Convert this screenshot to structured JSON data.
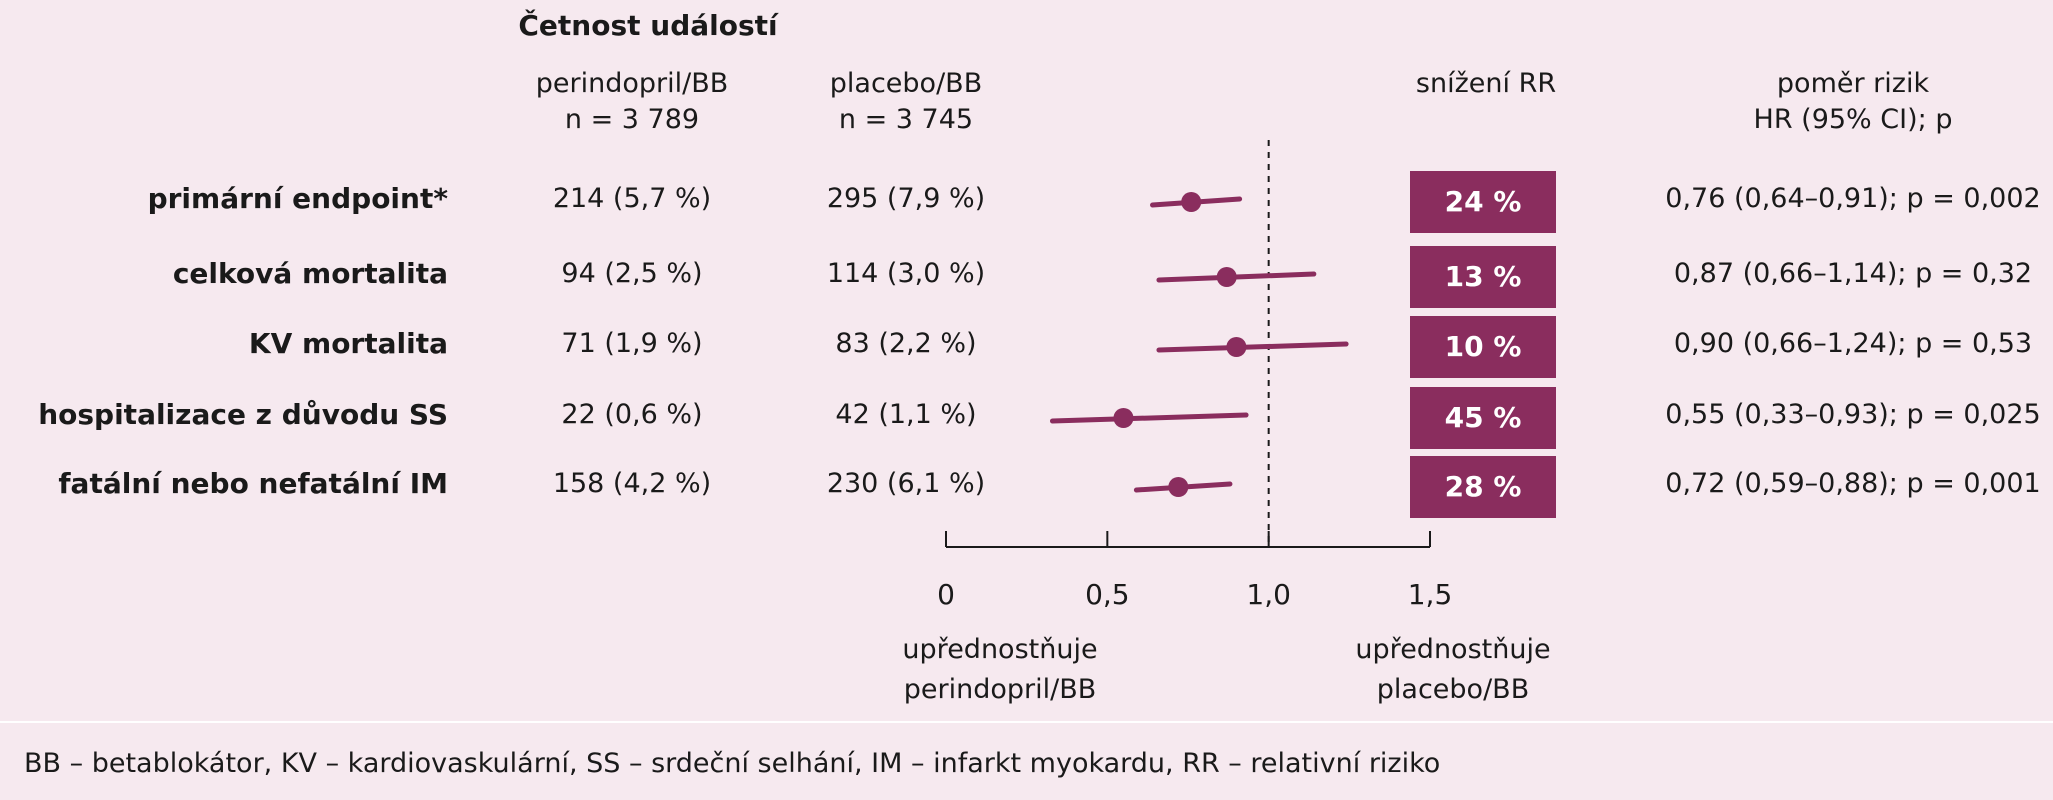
{
  "header": {
    "title": "Četnost událostí",
    "col_perindopril": "perindopril/BB",
    "col_perindopril_n": "n = 3 789",
    "col_placebo": "placebo/BB",
    "col_placebo_n": "n = 3 745",
    "col_rr": "snížení RR",
    "col_hr_line1": "poměr rizik",
    "col_hr_line2": "HR (95% CI); p"
  },
  "chart_data": {
    "type": "forest",
    "rows": [
      {
        "label": "primární endpoint*",
        "perindopril": "214 (5,7 %)",
        "placebo": "295 (7,9 %)",
        "rr_reduction": "24 %",
        "hr_text": "0,76 (0,64–0,91); p = 0,002",
        "hr": 0.76,
        "ci_low": 0.64,
        "ci_high": 0.91
      },
      {
        "label": "celková mortalita",
        "perindopril": "94 (2,5 %)",
        "placebo": "114 (3,0 %)",
        "rr_reduction": "13 %",
        "hr_text": "0,87 (0,66–1,14); p = 0,32",
        "hr": 0.87,
        "ci_low": 0.66,
        "ci_high": 1.14
      },
      {
        "label": "KV mortalita",
        "perindopril": "71 (1,9 %)",
        "placebo": "83 (2,2 %)",
        "rr_reduction": "10 %",
        "hr_text": "0,90 (0,66–1,24); p = 0,53",
        "hr": 0.9,
        "ci_low": 0.66,
        "ci_high": 1.24
      },
      {
        "label": "hospitalizace z důvodu SS",
        "perindopril": "22 (0,6 %)",
        "placebo": "42 (1,1 %)",
        "rr_reduction": "45 %",
        "hr_text": "0,55 (0,33–0,93);  p = 0,025",
        "hr": 0.55,
        "ci_low": 0.33,
        "ci_high": 0.93
      },
      {
        "label": "fatální nebo nefatální IM",
        "perindopril": "158 (4,2 %)",
        "placebo": "230 (6,1 %)",
        "rr_reduction": "28 %",
        "hr_text": "0,72 (0,59–0,88); p = 0,001",
        "hr": 0.72,
        "ci_low": 0.59,
        "ci_high": 0.88
      }
    ],
    "x_ticks": [
      "0",
      "0,5",
      "1,0",
      "1,5"
    ],
    "x_tick_values": [
      0,
      0.5,
      1.0,
      1.5
    ],
    "xlim": [
      0,
      1.5
    ],
    "reference_line": 1.0,
    "colors": {
      "marker": "#8a2d5e",
      "rr_box": "#8a2d5e",
      "background": "#f6e9ef"
    }
  },
  "favors_left_line1": "upřednostňuje",
  "favors_left_line2": "perindopril/BB",
  "favors_right_line1": "upřednostňuje",
  "favors_right_line2": "placebo/BB",
  "footnote": "BB – betablokátor, KV – kardiovaskulární, SS – srdeční selhání, IM – infarkt myokardu, RR – relativní riziko"
}
